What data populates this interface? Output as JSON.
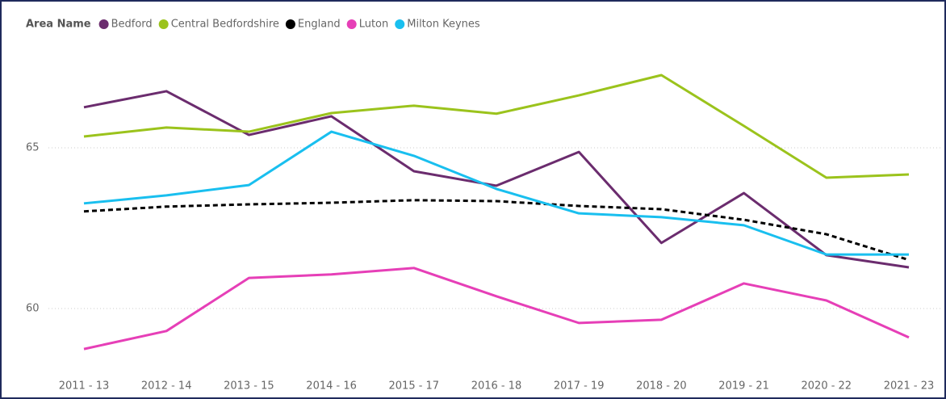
{
  "chart_data": {
    "type": "line",
    "legend_title": "Area Name",
    "categories": [
      "2011 - 13",
      "2012 - 14",
      "2013 - 15",
      "2014 - 16",
      "2015 - 17",
      "2016 - 18",
      "2017 - 19",
      "2018 - 20",
      "2019 - 21",
      "2020 - 22",
      "2021 - 23"
    ],
    "series": [
      {
        "name": "Bedford",
        "color": "#6b2c6e",
        "values": [
          66.26,
          66.76,
          65.4,
          65.98,
          64.27,
          63.82,
          64.87,
          62.04,
          63.59,
          61.66,
          61.28
        ]
      },
      {
        "name": "Central Bedfordshire",
        "color": "#9bc31c",
        "values": [
          65.35,
          65.63,
          65.5,
          66.08,
          66.31,
          66.06,
          66.63,
          67.26,
          65.68,
          64.07,
          64.17
        ]
      },
      {
        "name": "England",
        "color": "#000000",
        "dashed": true,
        "values": [
          63.02,
          63.17,
          63.24,
          63.29,
          63.37,
          63.34,
          63.19,
          63.09,
          62.76,
          62.31,
          61.51
        ]
      },
      {
        "name": "Luton",
        "color": "#e63fb7",
        "values": [
          58.74,
          59.3,
          60.95,
          61.06,
          61.26,
          60.38,
          59.55,
          59.65,
          60.78,
          60.25,
          59.1
        ]
      },
      {
        "name": "Milton Keynes",
        "color": "#19bfef",
        "values": [
          63.27,
          63.52,
          63.84,
          65.5,
          64.75,
          63.72,
          62.96,
          62.84,
          62.59,
          61.68,
          61.68
        ]
      }
    ],
    "ylim": [
      58.2,
      67.7
    ],
    "yticks": [
      60,
      65
    ],
    "grid": true
  }
}
